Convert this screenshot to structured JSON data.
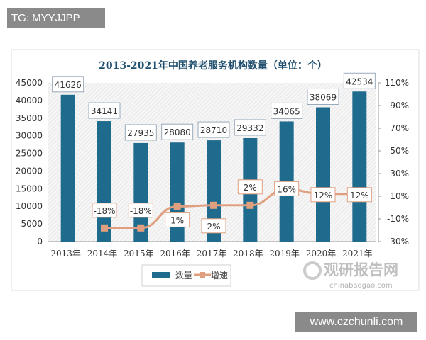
{
  "watermarks": {
    "top_left": "TG: MYYJJPP",
    "bottom_right": "www.czchunli.com",
    "logo_cn": "观研报告网",
    "logo_en": "chinabaogao.com"
  },
  "chart_data": {
    "type": "bar+line",
    "title": "2013-2021年中国养老服务机构数量（单位：个）",
    "categories": [
      "2013年",
      "2014年",
      "2015年",
      "2016年",
      "2017年",
      "2018年",
      "2019年",
      "2020年",
      "2021年"
    ],
    "series": [
      {
        "name": "数量",
        "type": "bar",
        "axis": "left",
        "color": "#1f6b8e",
        "values": [
          41626,
          34141,
          27935,
          28080,
          28710,
          29332,
          34065,
          38069,
          42534
        ],
        "labels": [
          "41626",
          "34141",
          "27935",
          "28080",
          "28710",
          "29332",
          "34065",
          "38069",
          "42534"
        ]
      },
      {
        "name": "增速",
        "type": "line",
        "axis": "right",
        "color": "#e0a080",
        "values": [
          null,
          -18,
          -18,
          1,
          2,
          2,
          16,
          12,
          12
        ],
        "labels": [
          "",
          "-18%",
          "-18%",
          "1%",
          "2%",
          "2%",
          "16%",
          "12%",
          "12%"
        ]
      }
    ],
    "y_left": {
      "min": 0,
      "max": 45000,
      "ticks": [
        "0",
        "5000",
        "10000",
        "15000",
        "20000",
        "25000",
        "30000",
        "35000",
        "40000",
        "45000"
      ]
    },
    "y_right": {
      "min": -30,
      "max": 110,
      "ticks": [
        "-30%",
        "-10%",
        "10%",
        "30%",
        "50%",
        "70%",
        "90%",
        "110%"
      ]
    },
    "legend": "bottom",
    "grid": false
  }
}
